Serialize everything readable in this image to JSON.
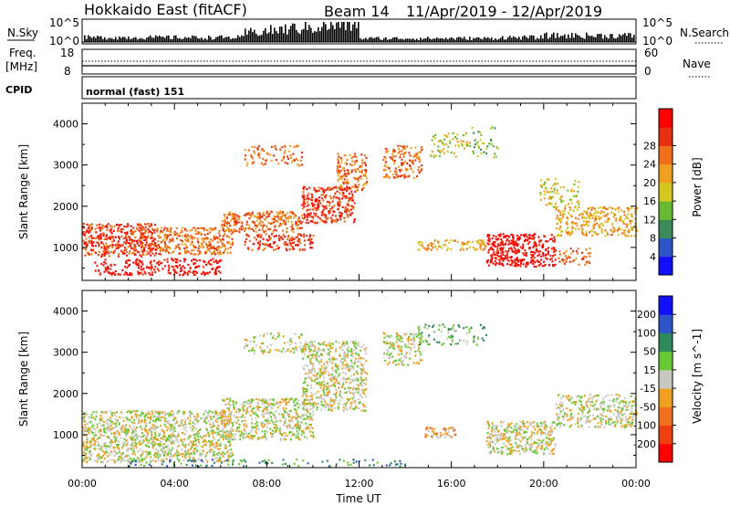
{
  "header": {
    "title": "Hokkaido East (fitACF)",
    "beam": "Beam 14",
    "dates": "11/Apr/2019 - 12/Apr/2019"
  },
  "sky_panel": {
    "left_label": "N.Sky",
    "right_label": "N.Search",
    "left_ticks": [
      "10^5",
      "10^0"
    ],
    "right_ticks": [
      "10^5",
      "10^0"
    ]
  },
  "freq_panel": {
    "label_line1": "Freq.",
    "label_line2": "[MHz]",
    "left_ticks": [
      "18",
      "8"
    ],
    "right_ticks": [
      "60",
      "0"
    ],
    "right_label": "Nave"
  },
  "cpid_panel": {
    "label": "CPID",
    "text": "normal (fast) 151"
  },
  "chart_data": [
    {
      "type": "heatmap",
      "quantity": "Power",
      "ylabel": "Slant Range [km]",
      "ylim": [
        200,
        4500
      ],
      "yticks": [
        1000,
        2000,
        3000,
        4000
      ],
      "xlim_hours": [
        0,
        24
      ],
      "colorbar": {
        "label": "Power [dB]",
        "ticks": [
          "4",
          "8",
          "12",
          "16",
          "20",
          "24",
          "28"
        ],
        "colors": [
          "#1010ff",
          "#2e55c8",
          "#3a8a5a",
          "#66bb33",
          "#d4c820",
          "#f0a020",
          "#f07018",
          "#e83010",
          "#ff0000"
        ]
      },
      "regions": [
        {
          "t0": 0.0,
          "t1": 3.2,
          "r0": 800,
          "r1": 1600,
          "level": 7,
          "density": 0.85
        },
        {
          "t0": 3.2,
          "t1": 6.5,
          "r0": 850,
          "r1": 1500,
          "level": 6,
          "density": 0.75
        },
        {
          "t0": 0.5,
          "t1": 6.0,
          "r0": 350,
          "r1": 750,
          "level": 8,
          "density": 0.55
        },
        {
          "t0": 6.0,
          "t1": 9.5,
          "r0": 1400,
          "r1": 1900,
          "level": 6,
          "density": 0.75
        },
        {
          "t0": 7.0,
          "t1": 10.0,
          "r0": 950,
          "r1": 1350,
          "level": 7,
          "density": 0.6
        },
        {
          "t0": 7.0,
          "t1": 9.5,
          "r0": 3000,
          "r1": 3500,
          "level": 6,
          "density": 0.35
        },
        {
          "t0": 9.5,
          "t1": 11.8,
          "r0": 1600,
          "r1": 2500,
          "level": 7,
          "density": 0.7
        },
        {
          "t0": 11.0,
          "t1": 12.3,
          "r0": 2400,
          "r1": 3300,
          "level": 6,
          "density": 0.6
        },
        {
          "t0": 13.0,
          "t1": 14.7,
          "r0": 2700,
          "r1": 3500,
          "level": 6,
          "density": 0.55
        },
        {
          "t0": 14.5,
          "t1": 17.5,
          "r0": 950,
          "r1": 1200,
          "level": 5,
          "density": 0.6
        },
        {
          "t0": 15.0,
          "t1": 16.8,
          "r0": 3200,
          "r1": 3800,
          "level": 4,
          "density": 0.3
        },
        {
          "t0": 16.8,
          "t1": 18.0,
          "r0": 3200,
          "r1": 4000,
          "level": 3,
          "density": 0.2
        },
        {
          "t0": 17.5,
          "t1": 20.5,
          "r0": 550,
          "r1": 1350,
          "level": 8,
          "density": 0.8
        },
        {
          "t0": 20.5,
          "t1": 22.0,
          "r0": 600,
          "r1": 1000,
          "level": 6,
          "density": 0.4
        },
        {
          "t0": 20.5,
          "t1": 24.0,
          "r0": 1300,
          "r1": 2000,
          "level": 5,
          "density": 0.6
        },
        {
          "t0": 19.8,
          "t1": 21.5,
          "r0": 2000,
          "r1": 2700,
          "level": 4,
          "density": 0.35
        }
      ]
    },
    {
      "type": "heatmap",
      "quantity": "Velocity",
      "ylabel": "Slant Range [km]",
      "ylim": [
        200,
        4500
      ],
      "yticks": [
        1000,
        2000,
        3000,
        4000
      ],
      "xlim_hours": [
        0,
        24
      ],
      "xlabel": "Time UT",
      "xticks": [
        "00:00",
        "04:00",
        "08:00",
        "12:00",
        "16:00",
        "20:00",
        "00:00"
      ],
      "colorbar": {
        "label": "Velocity [m s^-1]",
        "ticks": [
          "-200",
          "-100",
          "-50",
          "-15",
          "15",
          "50",
          "100",
          "200"
        ],
        "colors": [
          "#ff0000",
          "#f04010",
          "#f07020",
          "#f0a020",
          "#c8c8c0",
          "#66c833",
          "#2e8a5a",
          "#2e55c8",
          "#1010ff"
        ]
      },
      "regions": [
        {
          "t0": 0.0,
          "t1": 6.5,
          "r0": 350,
          "r1": 1600,
          "level": 4,
          "density": 0.75
        },
        {
          "t0": 6.0,
          "t1": 10.0,
          "r0": 900,
          "r1": 1900,
          "level": 4,
          "density": 0.7
        },
        {
          "t0": 7.0,
          "t1": 9.5,
          "r0": 3000,
          "r1": 3500,
          "level": 4,
          "density": 0.35
        },
        {
          "t0": 9.5,
          "t1": 12.3,
          "r0": 1600,
          "r1": 3300,
          "level": 4,
          "density": 0.65
        },
        {
          "t0": 13.0,
          "t1": 14.7,
          "r0": 2700,
          "r1": 3500,
          "level": 4,
          "density": 0.55
        },
        {
          "t0": 14.8,
          "t1": 16.2,
          "r0": 950,
          "r1": 1200,
          "level": 3,
          "density": 0.8
        },
        {
          "t0": 14.5,
          "t1": 17.5,
          "r0": 3200,
          "r1": 3700,
          "level": 5,
          "density": 0.3
        },
        {
          "t0": 17.5,
          "t1": 20.5,
          "r0": 550,
          "r1": 1350,
          "level": 4,
          "density": 0.75
        },
        {
          "t0": 20.5,
          "t1": 24.0,
          "r0": 1200,
          "r1": 2000,
          "level": 4,
          "density": 0.6
        },
        {
          "t0": 2.0,
          "t1": 14.0,
          "r0": 250,
          "r1": 420,
          "level": 6,
          "density": 0.25
        }
      ]
    }
  ]
}
